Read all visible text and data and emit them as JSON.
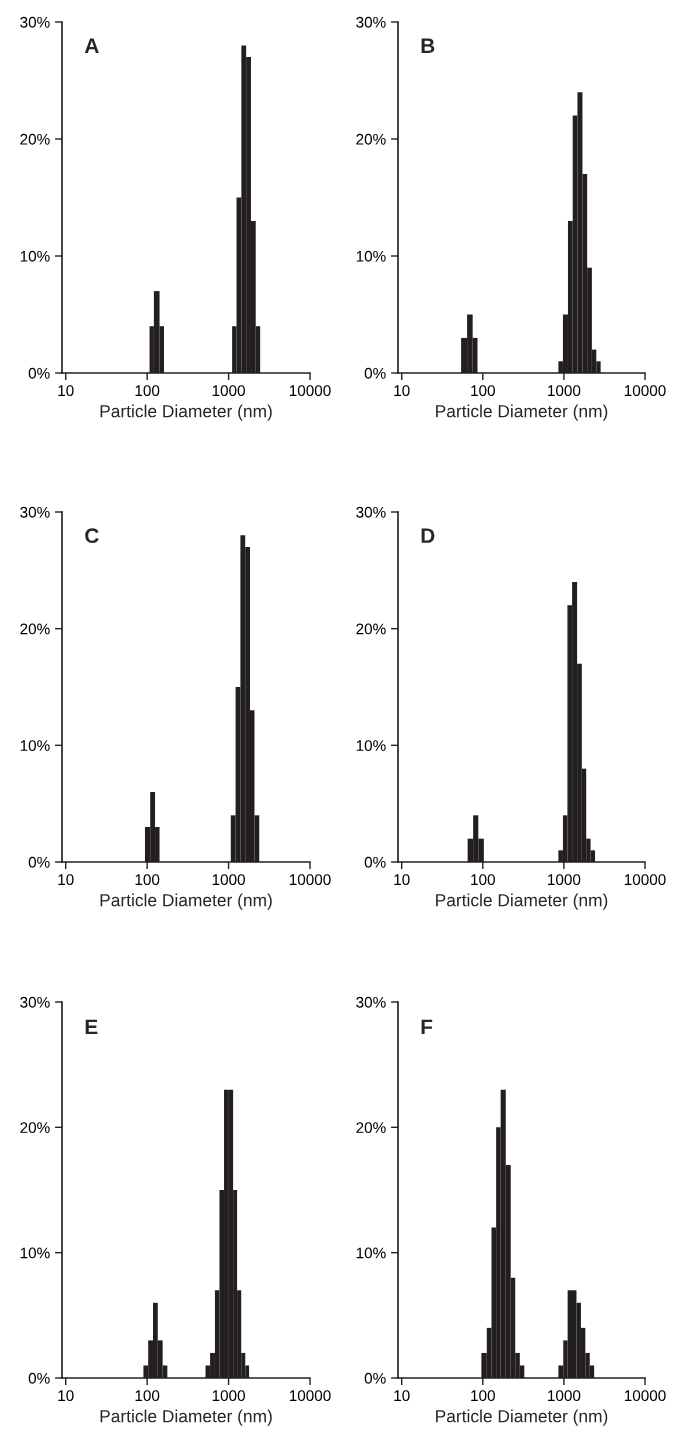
{
  "chart_data": [
    {
      "type": "histogram",
      "title": "A",
      "xlabel": "Particle Diameter (nm)",
      "log": "x",
      "grid": false,
      "xlim": [
        9,
        10000
      ],
      "xticks": [
        10,
        100,
        1000,
        10000
      ],
      "ylim": [
        0,
        30
      ],
      "yticks": [
        {
          "value": 0,
          "label": "0%"
        },
        {
          "value": 10,
          "label": "10%"
        },
        {
          "value": 20,
          "label": "20%"
        },
        {
          "value": 30,
          "label": "30%"
        }
      ],
      "color": "#231f20",
      "bins": [
        107,
        121,
        142,
        161,
        1105,
        1253,
        1435,
        1644,
        1884,
        2155,
        2443
      ],
      "values": [
        4,
        7,
        4,
        0,
        4,
        15,
        28,
        27,
        13,
        4
      ]
    },
    {
      "type": "histogram",
      "title": "B",
      "xlabel": "Particle Diameter (nm)",
      "log": "x",
      "grid": false,
      "xlim": [
        9,
        10000
      ],
      "xticks": [
        10,
        100,
        1000,
        10000
      ],
      "ylim": [
        0,
        30
      ],
      "yticks": [
        {
          "value": 0,
          "label": "0%"
        },
        {
          "value": 10,
          "label": "10%"
        },
        {
          "value": 20,
          "label": "20%"
        },
        {
          "value": 30,
          "label": "30%"
        }
      ],
      "color": "#231f20",
      "bins": [
        54,
        64,
        75,
        86,
        855,
        973,
        1122,
        1284,
        1469,
        1693,
        1935,
        2213,
        2508,
        2838
      ],
      "values": [
        3,
        5,
        3,
        0,
        1,
        5,
        13,
        22,
        24,
        17,
        9,
        2,
        1
      ]
    },
    {
      "type": "histogram",
      "title": "C",
      "xlabel": "Particle Diameter (nm)",
      "log": "x",
      "grid": false,
      "xlim": [
        9,
        10000
      ],
      "xticks": [
        10,
        100,
        1000,
        10000
      ],
      "ylim": [
        0,
        30
      ],
      "yticks": [
        {
          "value": 0,
          "label": "0%"
        },
        {
          "value": 10,
          "label": "10%"
        },
        {
          "value": 20,
          "label": "20%"
        },
        {
          "value": 30,
          "label": "30%"
        }
      ],
      "color": "#231f20",
      "bins": [
        94,
        109,
        125,
        142,
        1065,
        1219,
        1397,
        1600,
        1833,
        2080,
        2381
      ],
      "values": [
        3,
        6,
        3,
        0,
        4,
        15,
        28,
        27,
        13,
        4
      ]
    },
    {
      "type": "histogram",
      "title": "D",
      "xlabel": "Particle Diameter (nm)",
      "log": "x",
      "grid": false,
      "xlim": [
        9,
        10000
      ],
      "xticks": [
        10,
        100,
        1000,
        10000
      ],
      "ylim": [
        0,
        30
      ],
      "yticks": [
        {
          "value": 0,
          "label": "0%"
        },
        {
          "value": 10,
          "label": "10%"
        },
        {
          "value": 20,
          "label": "20%"
        },
        {
          "value": 30,
          "label": "30%"
        }
      ],
      "color": "#231f20",
      "bins": [
        65,
        76,
        88,
        103,
        855,
        973,
        1105,
        1262,
        1455,
        1663,
        1884,
        2133,
        2421
      ],
      "values": [
        2,
        4,
        2,
        0,
        1,
        4,
        22,
        24,
        17,
        8,
        2,
        1
      ]
    },
    {
      "type": "histogram",
      "title": "E",
      "xlabel": "Particle Diameter (nm)",
      "log": "x",
      "grid": false,
      "xlim": [
        9,
        10000
      ],
      "xticks": [
        10,
        100,
        1000,
        10000
      ],
      "ylim": [
        0,
        30
      ],
      "yticks": [
        {
          "value": 0,
          "label": "0%"
        },
        {
          "value": 10,
          "label": "10%"
        },
        {
          "value": 20,
          "label": "20%"
        },
        {
          "value": 30,
          "label": "30%"
        }
      ],
      "color": "#231f20",
      "bins": [
        90,
        103,
        118,
        135,
        155,
        177,
        521,
        593,
        680,
        773,
        879,
        1009,
        1137,
        1273,
        1429,
        1603,
        1786
      ],
      "values": [
        1,
        3,
        6,
        3,
        1,
        0,
        1,
        2,
        7,
        15,
        23,
        23,
        15,
        7,
        2,
        1
      ]
    },
    {
      "type": "histogram",
      "title": "F",
      "xlabel": "Particle Diameter (nm)",
      "log": "x",
      "grid": false,
      "xlim": [
        9,
        10000
      ],
      "xticks": [
        10,
        100,
        1000,
        10000
      ],
      "ylim": [
        0,
        30
      ],
      "yticks": [
        {
          "value": 0,
          "label": "0%"
        },
        {
          "value": 10,
          "label": "10%"
        },
        {
          "value": 20,
          "label": "20%"
        },
        {
          "value": 30,
          "label": "30%"
        }
      ],
      "color": "#231f20",
      "bins": [
        96,
        112,
        128,
        146,
        166,
        192,
        221,
        251,
        286,
        325,
        855,
        982,
        1112,
        1259,
        1429,
        1622,
        1837,
        2083,
        2360
      ],
      "values": [
        2,
        4,
        12,
        20,
        23,
        17,
        8,
        2,
        1,
        0,
        1,
        3,
        7,
        7,
        6,
        4,
        2,
        1
      ]
    }
  ]
}
